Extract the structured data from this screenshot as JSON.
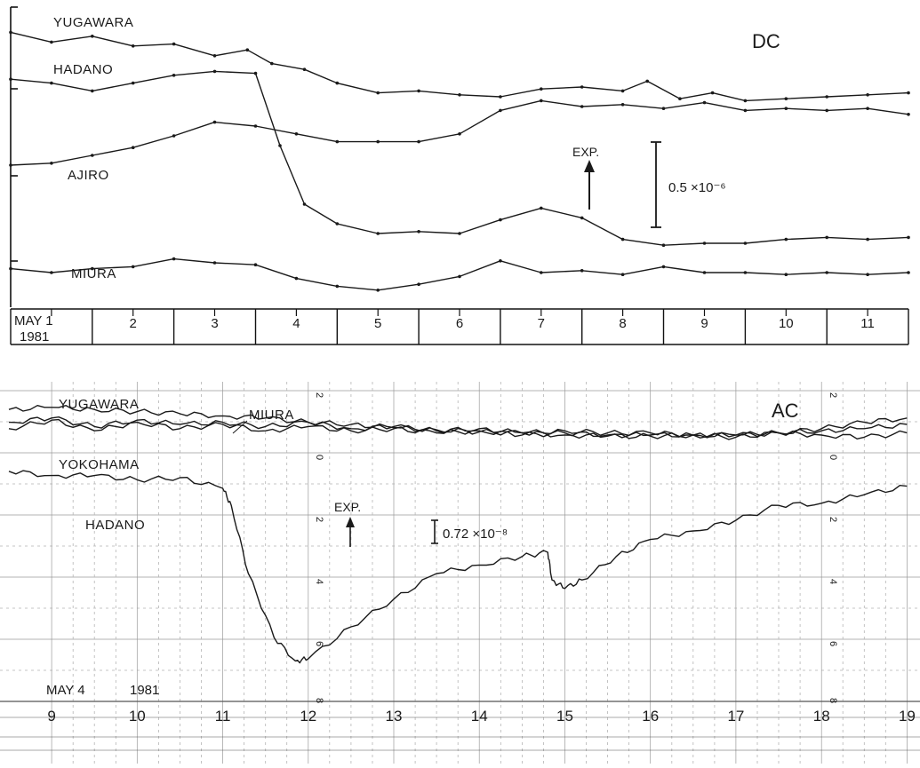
{
  "chart_data": [
    {
      "type": "line",
      "title": "DC",
      "ylabel": "",
      "xlabel": "",
      "x_axis": {
        "start_label": "MAY 1",
        "year_label": "1981",
        "tick_labels": [
          "2",
          "3",
          "4",
          "5",
          "6",
          "7",
          "8",
          "9",
          "10",
          "11"
        ],
        "xlim": [
          1,
          12
        ]
      },
      "ylim": [
        0,
        300
      ],
      "annotations": {
        "event_label": "EXP.",
        "event_day": 8.0,
        "scale_bar": "0.5 ×10⁻⁶",
        "scale_bar_value_units": 90
      },
      "series": [
        {
          "name": "YUGAWARA",
          "x": [
            1.0,
            1.5,
            2.0,
            2.5,
            3.0,
            3.5,
            3.9,
            4.2,
            4.6,
            5.0,
            5.5,
            6.0,
            6.5,
            7.0,
            7.5,
            8.0,
            8.5,
            8.8,
            9.2,
            9.6,
            10.0,
            10.5,
            11.0,
            11.5,
            12.0
          ],
          "y": [
            276,
            266,
            272,
            262,
            264,
            252,
            258,
            244,
            238,
            224,
            214,
            216,
            212,
            210,
            218,
            220,
            216,
            226,
            208,
            214,
            206,
            208,
            210,
            212,
            214
          ]
        },
        {
          "name": "HADANO",
          "x": [
            1.0,
            1.5,
            2.0,
            2.5,
            3.0,
            3.5,
            4.0,
            4.3,
            4.6,
            5.0,
            5.5,
            6.0,
            6.5,
            7.0,
            7.5,
            8.0,
            8.5,
            9.0,
            9.5,
            10.0,
            10.5,
            11.0,
            11.5,
            12.0
          ],
          "y": [
            228,
            224,
            216,
            224,
            232,
            236,
            234,
            160,
            100,
            80,
            70,
            72,
            70,
            84,
            96,
            86,
            64,
            58,
            60,
            60,
            64,
            66,
            64,
            66
          ]
        },
        {
          "name": "AJIRO",
          "x": [
            1.0,
            1.5,
            2.0,
            2.5,
            3.0,
            3.5,
            4.0,
            4.5,
            5.0,
            5.5,
            6.0,
            6.5,
            7.0,
            7.5,
            8.0,
            8.5,
            9.0,
            9.5,
            10.0,
            10.5,
            11.0,
            11.5,
            12.0
          ],
          "y": [
            140,
            142,
            150,
            158,
            170,
            184,
            180,
            172,
            164,
            164,
            164,
            172,
            196,
            206,
            200,
            202,
            198,
            204,
            196,
            198,
            196,
            198,
            192
          ]
        },
        {
          "name": "MIURA",
          "x": [
            1.0,
            1.5,
            2.0,
            2.5,
            3.0,
            3.5,
            4.0,
            4.5,
            5.0,
            5.5,
            6.0,
            6.5,
            7.0,
            7.5,
            8.0,
            8.5,
            9.0,
            9.5,
            10.0,
            10.5,
            11.0,
            11.5,
            12.0
          ],
          "y": [
            34,
            30,
            34,
            36,
            44,
            40,
            38,
            24,
            16,
            12,
            18,
            26,
            42,
            30,
            32,
            28,
            36,
            30,
            30,
            28,
            30,
            28,
            30
          ]
        }
      ]
    },
    {
      "type": "line",
      "title": "AC",
      "ylabel": "",
      "xlabel": "",
      "x_axis": {
        "start_label": "MAY 4",
        "year_label": "1981",
        "tick_labels": [
          "9",
          "10",
          "11",
          "12",
          "13",
          "14",
          "15",
          "16",
          "17",
          "18",
          "19"
        ],
        "xlim": [
          8.5,
          19.1
        ]
      },
      "ylim": [
        0,
        300
      ],
      "annotations": {
        "event_label": "EXP.",
        "event_hour": 12.4,
        "scale_bar": "0.72 ×10⁻⁸",
        "scale_bar_value_units": 22,
        "recorder_tick_labels": [
          "2",
          "0",
          "2",
          "4",
          "6",
          "8"
        ]
      },
      "series": [
        {
          "name": "YUGAWARA",
          "x": [
            8.5,
            9.0,
            9.5,
            10.0,
            10.5,
            11.0,
            11.5,
            12.0,
            12.5,
            13.0,
            13.5,
            14.0,
            14.5,
            15.0,
            15.5,
            16.0,
            16.5,
            17.0,
            17.5,
            18.0,
            18.5,
            19.0
          ],
          "y": [
            274,
            276,
            274,
            272,
            270,
            268,
            266,
            262,
            260,
            257,
            255,
            253,
            252,
            250,
            249,
            249,
            250,
            250,
            252,
            256,
            262,
            266
          ]
        },
        {
          "name": "MIURA",
          "x": [
            8.5,
            9.0,
            9.5,
            10.0,
            10.5,
            11.0,
            11.5,
            12.0,
            12.5,
            13.0,
            13.5,
            14.0,
            14.5,
            15.0,
            15.5,
            16.0,
            16.5,
            17.0,
            17.5,
            18.0,
            18.5,
            19.0
          ],
          "y": [
            262,
            266,
            258,
            264,
            260,
            262,
            258,
            262,
            256,
            258,
            254,
            256,
            252,
            254,
            252,
            252,
            250,
            250,
            252,
            254,
            256,
            260
          ]
        },
        {
          "name": "YOKOHAMA",
          "x": [
            8.5,
            9.0,
            9.5,
            10.0,
            10.5,
            11.0,
            11.5,
            12.0,
            12.5,
            13.0,
            13.5,
            14.0,
            14.5,
            15.0,
            15.5,
            16.0,
            16.5,
            17.0,
            17.5,
            18.0,
            18.5,
            19.0
          ],
          "y": [
            256,
            264,
            254,
            262,
            256,
            260,
            254,
            258,
            254,
            256,
            252,
            254,
            250,
            252,
            250,
            250,
            250,
            248,
            252,
            250,
            248,
            252
          ]
        },
        {
          "name": "HADANO",
          "x": [
            8.5,
            9.0,
            9.5,
            10.0,
            10.5,
            11.0,
            11.1,
            11.3,
            11.6,
            11.85,
            12.0,
            12.5,
            13.0,
            13.5,
            14.0,
            14.5,
            14.8,
            14.85,
            15.0,
            15.2,
            15.6,
            16.0,
            16.5,
            17.0,
            17.5,
            18.0,
            18.5,
            19.0
          ],
          "y": [
            216,
            212,
            212,
            208,
            210,
            200,
            184,
            120,
            60,
            38,
            40,
            70,
            96,
            120,
            128,
            136,
            140,
            114,
            106,
            114,
            136,
            152,
            160,
            170,
            184,
            186,
            194,
            202
          ]
        }
      ]
    }
  ]
}
